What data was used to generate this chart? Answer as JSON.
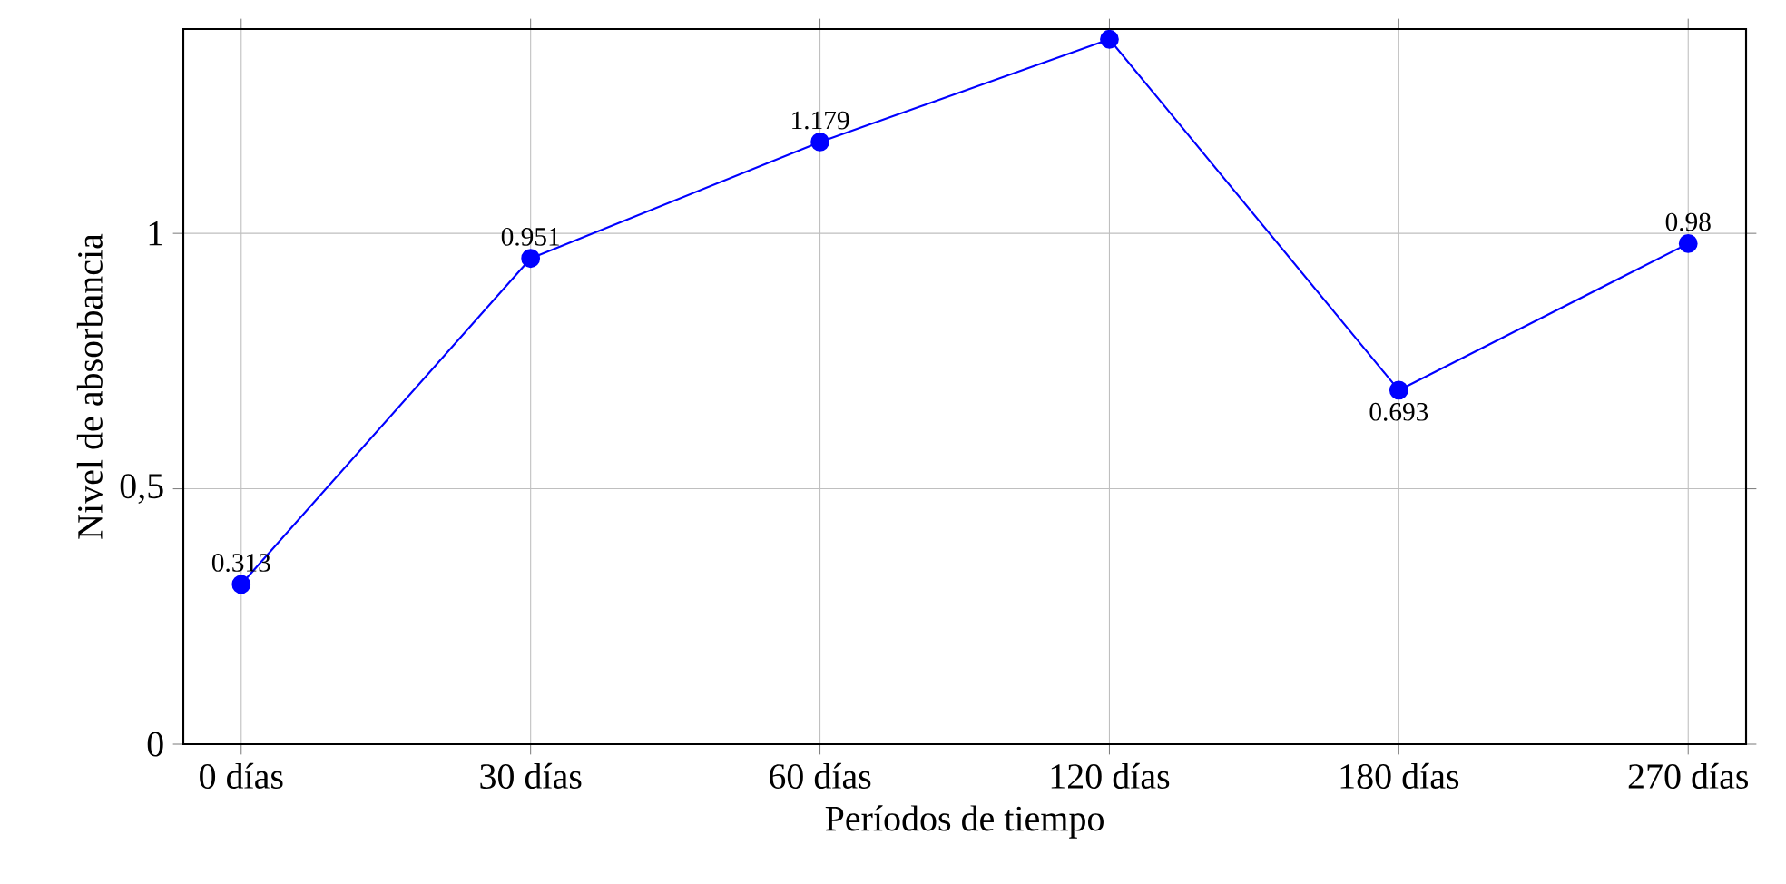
{
  "chart_data": {
    "type": "line",
    "xlabel": "Períodos de tiempo",
    "ylabel": "Nivel de absorbancia",
    "categories": [
      "0 días",
      "30 días",
      "60 días",
      "120 días",
      "180 días",
      "270 días"
    ],
    "series": [
      {
        "color": "#0000ff",
        "values": [
          0.313,
          0.951,
          1.179,
          1.38,
          0.693,
          0.98
        ],
        "value_labels": [
          "0.313",
          "0.951",
          "1.179",
          null,
          "0.693",
          "0.98"
        ]
      }
    ],
    "ylim": [
      0,
      1.4
    ],
    "yticks": [
      0,
      {
        "value": 0.5,
        "label": "0,5"
      },
      1
    ],
    "grid": true,
    "marker": "circle",
    "line_style": "solid"
  }
}
